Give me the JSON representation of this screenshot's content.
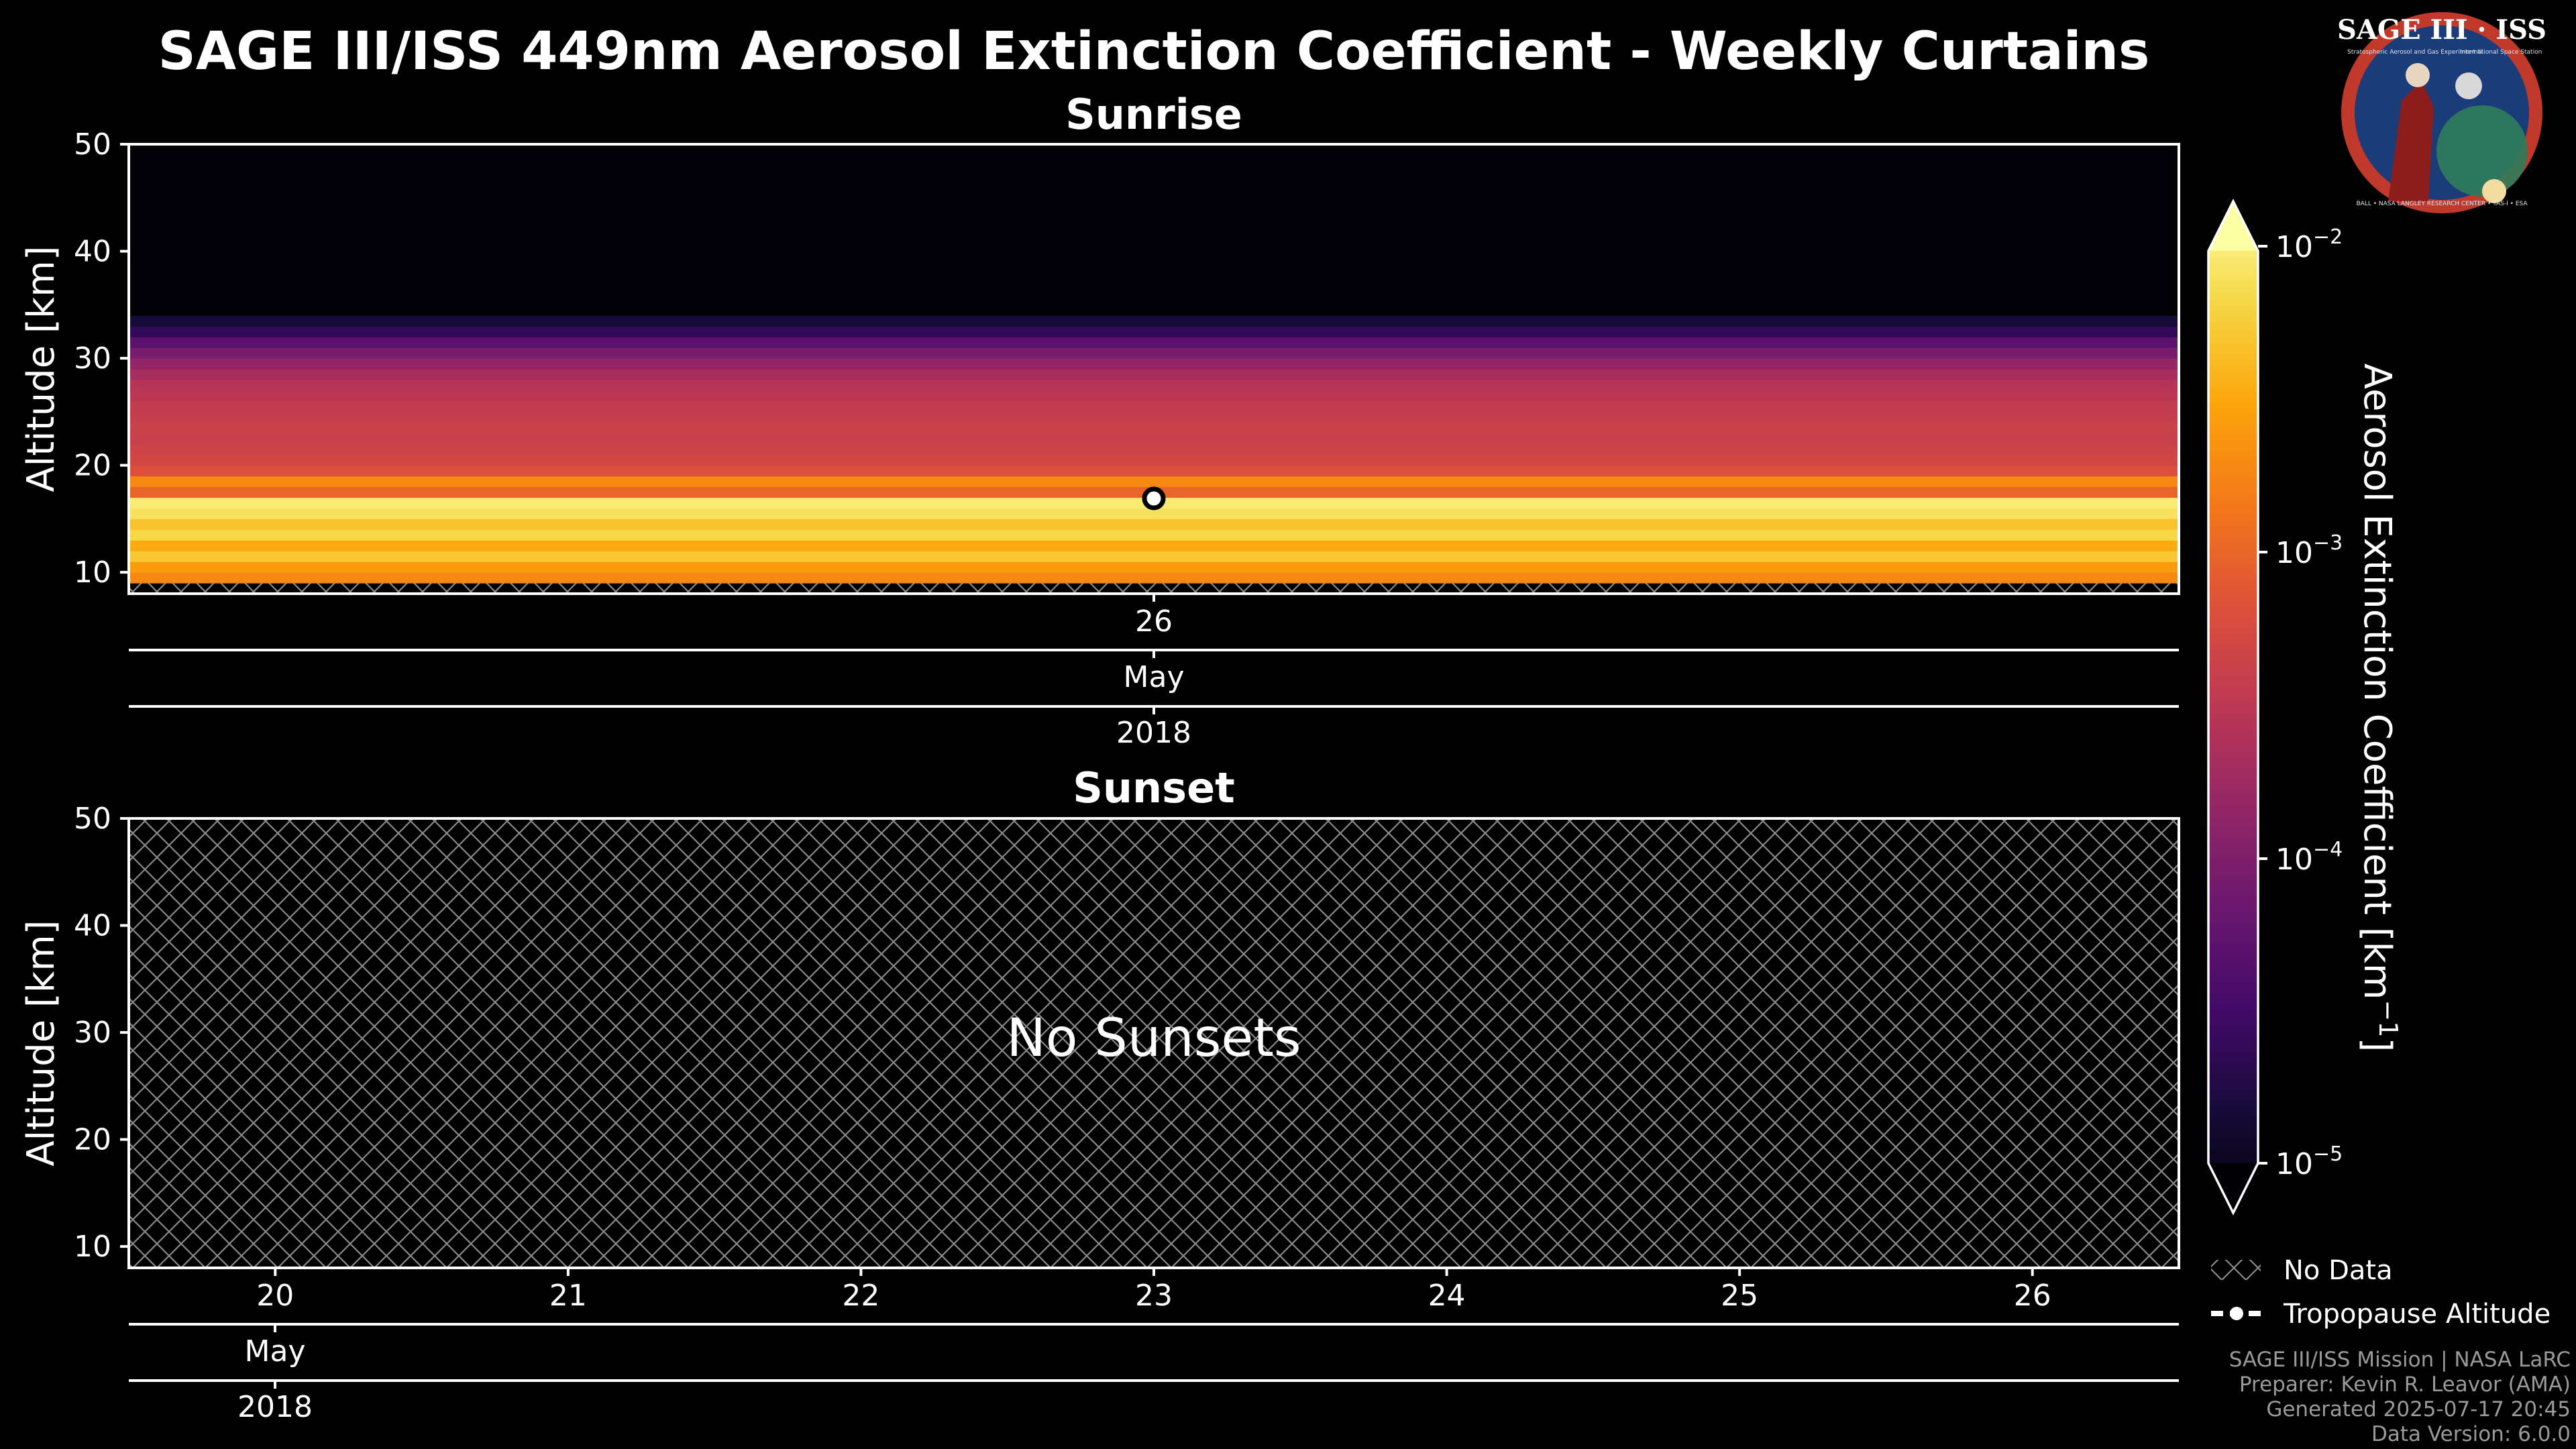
{
  "title": "SAGE III/ISS 449nm Aerosol Extinction Coefficient - Weekly Curtains",
  "logo": {
    "text": "SAGE III · ISS",
    "ring_text": "BALL • NASA LANGLEY RESEARCH CENTER • TAS-I • ESA",
    "line1": "Stratospheric Aerosol and Gas Experiment III",
    "line2": "International Space Station"
  },
  "colors": {
    "background": "#000000",
    "no_data_hatch": "#8a8a8a",
    "colormap": "inferno",
    "logo_ring": "#c0392b",
    "logo_bg": "#1a3c78"
  },
  "chart_data": [
    {
      "type": "heatmap",
      "title": "Sunrise",
      "ylabel": "Altitude [km]",
      "ylim": [
        8,
        50
      ],
      "yticks": [
        "10",
        "20",
        "30",
        "40",
        "50"
      ],
      "x_tick_labels": [
        "26"
      ],
      "x_month_label": "May",
      "x_year_label": "2018",
      "profile_date": "2018-05-26",
      "profile": [
        {
          "alt_bottom": 8,
          "alt_top": 9,
          "extinction": null
        },
        {
          "alt_bottom": 9,
          "alt_top": 10,
          "extinction": 0.0016
        },
        {
          "alt_bottom": 10,
          "alt_top": 11,
          "extinction": 0.0022
        },
        {
          "alt_bottom": 11,
          "alt_top": 12,
          "extinction": 0.004
        },
        {
          "alt_bottom": 12,
          "alt_top": 13,
          "extinction": 0.0027
        },
        {
          "alt_bottom": 13,
          "alt_top": 14,
          "extinction": 0.005
        },
        {
          "alt_bottom": 14,
          "alt_top": 15,
          "extinction": 0.0038
        },
        {
          "alt_bottom": 15,
          "alt_top": 16,
          "extinction": 0.006
        },
        {
          "alt_bottom": 16,
          "alt_top": 17,
          "extinction": 0.007
        },
        {
          "alt_bottom": 17,
          "alt_top": 18,
          "extinction": 0.0009
        },
        {
          "alt_bottom": 18,
          "alt_top": 19,
          "extinction": 0.0016
        },
        {
          "alt_bottom": 19,
          "alt_top": 20,
          "extinction": 0.0006
        },
        {
          "alt_bottom": 20,
          "alt_top": 21,
          "extinction": 0.00048
        },
        {
          "alt_bottom": 21,
          "alt_top": 22,
          "extinction": 0.00044
        },
        {
          "alt_bottom": 22,
          "alt_top": 23,
          "extinction": 0.0004
        },
        {
          "alt_bottom": 23,
          "alt_top": 24,
          "extinction": 0.00042
        },
        {
          "alt_bottom": 24,
          "alt_top": 25,
          "extinction": 0.00038
        },
        {
          "alt_bottom": 25,
          "alt_top": 26,
          "extinction": 0.00036
        },
        {
          "alt_bottom": 26,
          "alt_top": 27,
          "extinction": 0.00032
        },
        {
          "alt_bottom": 27,
          "alt_top": 28,
          "extinction": 0.00028
        },
        {
          "alt_bottom": 28,
          "alt_top": 29,
          "extinction": 0.00022
        },
        {
          "alt_bottom": 29,
          "alt_top": 30,
          "extinction": 0.00016
        },
        {
          "alt_bottom": 30,
          "alt_top": 31,
          "extinction": 0.0001
        },
        {
          "alt_bottom": 31,
          "alt_top": 32,
          "extinction": 6e-05
        },
        {
          "alt_bottom": 32,
          "alt_top": 33,
          "extinction": 3e-05
        },
        {
          "alt_bottom": 33,
          "alt_top": 34,
          "extinction": 2e-05
        },
        {
          "alt_bottom": 34,
          "alt_top": 50,
          "extinction": 1.05e-05
        }
      ],
      "tropopause": {
        "date": "2018-05-26",
        "altitude": 16.9
      }
    },
    {
      "type": "heatmap",
      "title": "Sunset",
      "ylabel": "Altitude [km]",
      "ylim": [
        8,
        50
      ],
      "yticks": [
        "10",
        "20",
        "30",
        "40",
        "50"
      ],
      "x_tick_labels": [
        "20",
        "21",
        "22",
        "23",
        "24",
        "25",
        "26"
      ],
      "x_month_label": "May",
      "x_year_label": "2018",
      "annotation": "No Sunsets",
      "profiles": []
    }
  ],
  "colorbar": {
    "label_main": "Aerosol Extinction Coefficient [km",
    "label_sup": "−1",
    "label_end": "]",
    "scale": "log",
    "range": [
      1e-05,
      0.01
    ],
    "extend": "both",
    "ticks": [
      {
        "base": "10",
        "exp": "−2"
      },
      {
        "base": "10",
        "exp": "−3"
      },
      {
        "base": "10",
        "exp": "−4"
      },
      {
        "base": "10",
        "exp": "−5"
      }
    ]
  },
  "legend": {
    "placement": "bottom-right",
    "items": [
      {
        "label": "No Data"
      },
      {
        "label": "Tropopause Altitude"
      }
    ]
  },
  "footer": [
    "SAGE III/ISS Mission | NASA LaRC",
    "Preparer: Kevin R. Leavor (AMA)",
    "Generated 2025-07-17 20:45",
    "Data Version: 6.0.0"
  ]
}
